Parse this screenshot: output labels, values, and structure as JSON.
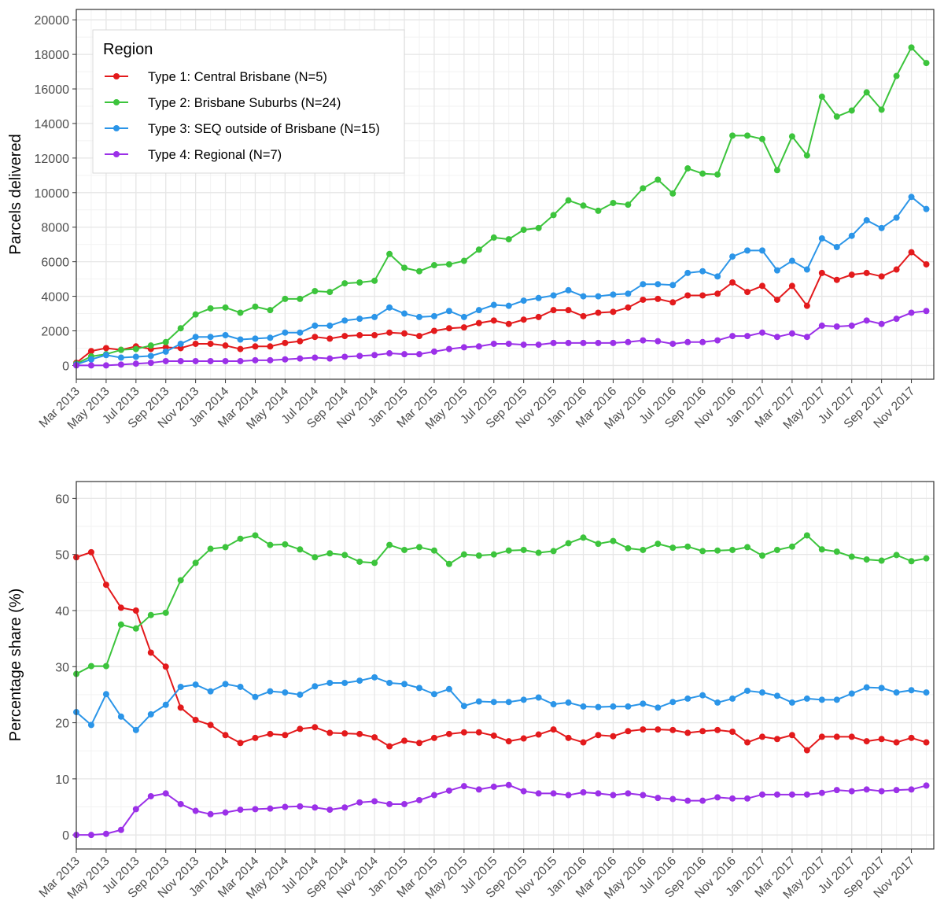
{
  "colors": {
    "type1": "#e31a1c",
    "type2": "#3cc43c",
    "type3": "#2b95e8",
    "type4": "#9b30e8",
    "grid_major": "#e6e6e6",
    "grid_minor": "#f2f2f2",
    "axis": "#333333",
    "tick_text": "#4d4d4d"
  },
  "legend": {
    "title": "Region",
    "position": "top-left",
    "entries": [
      "Type 1: Central Brisbane (N=5)",
      "Type 2: Brisbane Suburbs (N=24)",
      "Type 3: SEQ outside of Brisbane (N=15)",
      "Type 4: Regional (N=7)"
    ]
  },
  "x_tick_labels": [
    "Mar 2013",
    "May 2013",
    "Jul 2013",
    "Sep 2013",
    "Nov 2013",
    "Jan 2014",
    "Mar 2014",
    "May 2014",
    "Jul 2014",
    "Sep 2014",
    "Nov 2014",
    "Jan 2015",
    "Mar 2015",
    "May 2015",
    "Jul 2015",
    "Sep 2015",
    "Nov 2015",
    "Jan 2016",
    "Mar 2016",
    "May 2016",
    "Jul 2016",
    "Sep 2016",
    "Nov 2016",
    "Jan 2017",
    "Mar 2017",
    "May 2017",
    "Jul 2017",
    "Sep 2017",
    "Nov 2017"
  ],
  "chart_data": [
    {
      "type": "line",
      "ylabel": "Parcels delivered",
      "xlabel": "",
      "title": "",
      "grid": true,
      "ylim": [
        -800,
        20600
      ],
      "yticks": [
        0,
        2000,
        4000,
        6000,
        8000,
        10000,
        12000,
        14000,
        16000,
        18000,
        20000
      ],
      "x_start": "Mar 2013",
      "x_end": "Dec 2017",
      "x": [
        "Mar 2013",
        "Apr 2013",
        "May 2013",
        "Jun 2013",
        "Jul 2013",
        "Aug 2013",
        "Sep 2013",
        "Oct 2013",
        "Nov 2013",
        "Dec 2013",
        "Jan 2014",
        "Feb 2014",
        "Mar 2014",
        "Apr 2014",
        "May 2014",
        "Jun 2014",
        "Jul 2014",
        "Aug 2014",
        "Sep 2014",
        "Oct 2014",
        "Nov 2014",
        "Dec 2014",
        "Jan 2015",
        "Feb 2015",
        "Mar 2015",
        "Apr 2015",
        "May 2015",
        "Jun 2015",
        "Jul 2015",
        "Aug 2015",
        "Sep 2015",
        "Oct 2015",
        "Nov 2015",
        "Dec 2015",
        "Jan 2016",
        "Feb 2016",
        "Mar 2016",
        "Apr 2016",
        "May 2016",
        "Jun 2016",
        "Jul 2016",
        "Aug 2016",
        "Sep 2016",
        "Oct 2016",
        "Nov 2016",
        "Dec 2016",
        "Jan 2017",
        "Feb 2017",
        "Mar 2017",
        "Apr 2017",
        "May 2017",
        "Jun 2017",
        "Jul 2017",
        "Aug 2017",
        "Sep 2017",
        "Oct 2017",
        "Nov 2017",
        "Dec 2017"
      ],
      "series": [
        {
          "name": "Type 1: Central Brisbane (N=5)",
          "color": "#e31a1c",
          "values": [
            150,
            830,
            1000,
            900,
            1100,
            950,
            1050,
            1000,
            1250,
            1250,
            1150,
            950,
            1100,
            1100,
            1300,
            1400,
            1650,
            1550,
            1700,
            1750,
            1750,
            1900,
            1850,
            1700,
            2000,
            2150,
            2200,
            2450,
            2600,
            2400,
            2650,
            2800,
            3200,
            3200,
            2850,
            3050,
            3100,
            3350,
            3800,
            3850,
            3650,
            4050,
            4050,
            4150,
            4800,
            4250,
            4600,
            3800,
            4600,
            3450,
            5350,
            4950,
            5250,
            5350,
            5150,
            5550,
            6550,
            5850
          ]
        },
        {
          "name": "Type 2: Brisbane Suburbs (N=24)",
          "color": "#3cc43c",
          "values": [
            100,
            520,
            650,
            900,
            950,
            1150,
            1350,
            2150,
            2950,
            3300,
            3350,
            3050,
            3400,
            3200,
            3850,
            3850,
            4300,
            4250,
            4750,
            4800,
            4900,
            6450,
            5650,
            5450,
            5800,
            5850,
            6050,
            6700,
            7400,
            7300,
            7850,
            7950,
            8700,
            9550,
            9250,
            8950,
            9400,
            9300,
            10250,
            10750,
            9950,
            11400,
            11100,
            11050,
            13300,
            13300,
            13100,
            11300,
            13250,
            12150,
            15550,
            14400,
            14750,
            15800,
            14800,
            16750,
            18400,
            17500
          ]
        },
        {
          "name": "Type 3: SEQ outside of Brisbane (N=15)",
          "color": "#2b95e8",
          "values": [
            50,
            350,
            600,
            450,
            500,
            550,
            800,
            1250,
            1650,
            1650,
            1750,
            1500,
            1550,
            1600,
            1900,
            1900,
            2300,
            2300,
            2600,
            2700,
            2800,
            3350,
            3000,
            2800,
            2850,
            3150,
            2800,
            3200,
            3500,
            3450,
            3750,
            3900,
            4050,
            4350,
            4000,
            4000,
            4100,
            4150,
            4700,
            4700,
            4650,
            5350,
            5450,
            5150,
            6300,
            6650,
            6650,
            5500,
            6050,
            5550,
            7350,
            6850,
            7500,
            8400,
            7950,
            8550,
            9750,
            9050
          ]
        },
        {
          "name": "Type 4: Regional (N=7)",
          "color": "#9b30e8",
          "values": [
            0,
            0,
            0,
            50,
            100,
            150,
            250,
            250,
            250,
            250,
            250,
            250,
            300,
            300,
            350,
            400,
            450,
            400,
            500,
            550,
            600,
            700,
            650,
            650,
            800,
            950,
            1050,
            1100,
            1250,
            1250,
            1200,
            1200,
            1300,
            1300,
            1300,
            1300,
            1300,
            1350,
            1450,
            1400,
            1250,
            1350,
            1350,
            1450,
            1700,
            1700,
            1900,
            1650,
            1850,
            1650,
            2300,
            2250,
            2300,
            2600,
            2400,
            2700,
            3050,
            3150
          ]
        }
      ]
    },
    {
      "type": "line",
      "ylabel": "Percentage share (%)",
      "xlabel": "",
      "title": "",
      "grid": true,
      "ylim": [
        -2.5,
        63
      ],
      "yticks": [
        0,
        10,
        20,
        30,
        40,
        50,
        60
      ],
      "x_start": "Mar 2013",
      "x_end": "Dec 2017",
      "x": [
        "Mar 2013",
        "Apr 2013",
        "May 2013",
        "Jun 2013",
        "Jul 2013",
        "Aug 2013",
        "Sep 2013",
        "Oct 2013",
        "Nov 2013",
        "Dec 2013",
        "Jan 2014",
        "Feb 2014",
        "Mar 2014",
        "Apr 2014",
        "May 2014",
        "Jun 2014",
        "Jul 2014",
        "Aug 2014",
        "Sep 2014",
        "Oct 2014",
        "Nov 2014",
        "Dec 2014",
        "Jan 2015",
        "Feb 2015",
        "Mar 2015",
        "Apr 2015",
        "May 2015",
        "Jun 2015",
        "Jul 2015",
        "Aug 2015",
        "Sep 2015",
        "Oct 2015",
        "Nov 2015",
        "Dec 2015",
        "Jan 2016",
        "Feb 2016",
        "Mar 2016",
        "Apr 2016",
        "May 2016",
        "Jun 2016",
        "Jul 2016",
        "Aug 2016",
        "Sep 2016",
        "Oct 2016",
        "Nov 2016",
        "Dec 2016",
        "Jan 2017",
        "Feb 2017",
        "Mar 2017",
        "Apr 2017",
        "May 2017",
        "Jun 2017",
        "Jul 2017",
        "Aug 2017",
        "Sep 2017",
        "Oct 2017",
        "Nov 2017",
        "Dec 2017"
      ],
      "series": [
        {
          "name": "Type 1: Central Brisbane (N=5)",
          "color": "#e31a1c",
          "values": [
            49.5,
            50.4,
            44.6,
            40.5,
            40.0,
            32.5,
            30.0,
            22.7,
            20.5,
            19.6,
            17.8,
            16.4,
            17.3,
            18.0,
            17.8,
            18.9,
            19.2,
            18.2,
            18.1,
            18.0,
            17.4,
            15.8,
            16.8,
            16.4,
            17.3,
            18.0,
            18.3,
            18.3,
            17.7,
            16.7,
            17.2,
            17.9,
            18.8,
            17.3,
            16.5,
            17.8,
            17.6,
            18.5,
            18.8,
            18.8,
            18.7,
            18.2,
            18.5,
            18.7,
            18.4,
            16.5,
            17.5,
            17.1,
            17.8,
            15.1,
            17.5,
            17.5,
            17.5,
            16.7,
            17.1,
            16.5,
            17.3,
            16.5
          ]
        },
        {
          "name": "Type 2: Brisbane Suburbs (N=24)",
          "color": "#3cc43c",
          "values": [
            28.7,
            30.1,
            30.1,
            37.5,
            36.8,
            39.2,
            39.6,
            45.4,
            48.5,
            51.0,
            51.3,
            52.8,
            53.4,
            51.7,
            51.8,
            50.9,
            49.5,
            50.2,
            49.9,
            48.7,
            48.5,
            51.7,
            50.8,
            51.3,
            50.7,
            48.3,
            50.0,
            49.8,
            50.0,
            50.7,
            50.8,
            50.3,
            50.6,
            52.0,
            53.0,
            51.9,
            52.4,
            51.1,
            50.8,
            51.9,
            51.2,
            51.4,
            50.6,
            50.7,
            50.8,
            51.3,
            49.8,
            50.8,
            51.4,
            53.4,
            50.9,
            50.5,
            49.6,
            49.1,
            48.9,
            49.9,
            48.8,
            49.3
          ]
        },
        {
          "name": "Type 3: SEQ outside of Brisbane (N=15)",
          "color": "#2b95e8",
          "values": [
            21.9,
            19.6,
            25.1,
            21.1,
            18.7,
            21.5,
            23.2,
            26.4,
            26.8,
            25.6,
            26.9,
            26.4,
            24.6,
            25.6,
            25.4,
            25.0,
            26.5,
            27.1,
            27.1,
            27.5,
            28.1,
            27.1,
            26.9,
            26.2,
            25.1,
            26.0,
            23.0,
            23.8,
            23.7,
            23.7,
            24.1,
            24.5,
            23.3,
            23.6,
            22.9,
            22.8,
            22.9,
            22.9,
            23.4,
            22.7,
            23.7,
            24.3,
            24.9,
            23.6,
            24.3,
            25.7,
            25.4,
            24.8,
            23.6,
            24.3,
            24.1,
            24.1,
            25.2,
            26.3,
            26.2,
            25.4,
            25.8,
            25.4
          ]
        },
        {
          "name": "Type 4: Regional (N=7)",
          "color": "#9b30e8",
          "values": [
            0,
            0,
            0.2,
            0.9,
            4.6,
            6.9,
            7.4,
            5.5,
            4.3,
            3.7,
            4.0,
            4.5,
            4.6,
            4.7,
            5.0,
            5.1,
            4.9,
            4.5,
            4.9,
            5.8,
            6.0,
            5.5,
            5.5,
            6.2,
            7.1,
            7.9,
            8.7,
            8.1,
            8.6,
            8.9,
            7.8,
            7.4,
            7.4,
            7.1,
            7.6,
            7.4,
            7.1,
            7.4,
            7.1,
            6.6,
            6.4,
            6.1,
            6.1,
            6.7,
            6.5,
            6.5,
            7.2,
            7.2,
            7.2,
            7.2,
            7.5,
            8.0,
            7.8,
            8.1,
            7.8,
            8.0,
            8.1,
            8.8
          ]
        }
      ]
    }
  ]
}
